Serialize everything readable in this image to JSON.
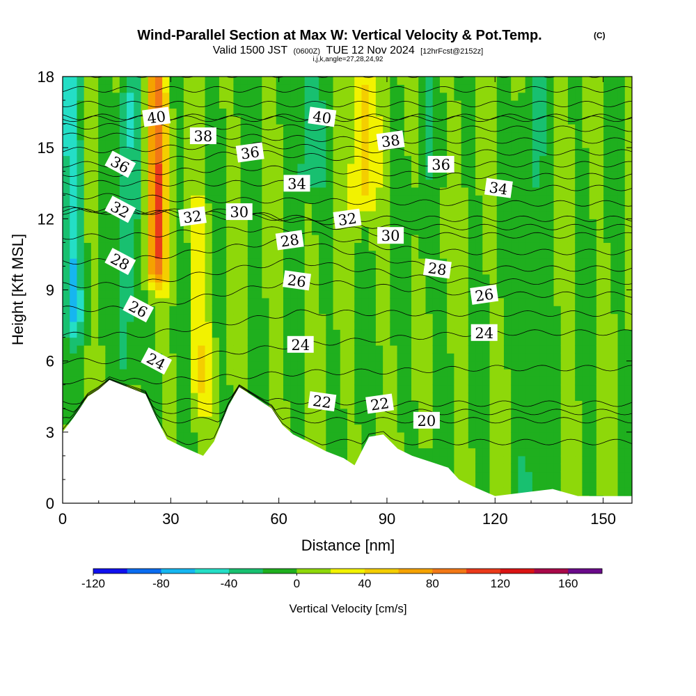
{
  "header": {
    "title": "Wind-Parallel Section at Max W: Vertical Velocity & Pot.Temp.",
    "copyright": "(C)",
    "valid_prefix": "Valid 1500 JST",
    "valid_utc": "(0600Z)",
    "valid_date": "TUE 12 Nov 2024",
    "forecast": "[12hrFcst@2152z]",
    "indices": "i,j,k,angle=27,28,24,92"
  },
  "chart_data": {
    "type": "heatmap",
    "title": "Wind-Parallel Section at Max W: Vertical Velocity & Pot.Temp.",
    "xlabel": "Distance [nm]",
    "ylabel": "Height [Kft MSL]",
    "xlim": [
      0,
      158
    ],
    "ylim": [
      0,
      18
    ],
    "x_ticks": [
      0,
      30,
      60,
      90,
      120,
      150
    ],
    "y_ticks": [
      0,
      3,
      6,
      9,
      12,
      15,
      18
    ],
    "terrain_kft": [
      [
        0,
        3.0
      ],
      [
        3,
        3.6
      ],
      [
        7,
        4.5
      ],
      [
        10,
        4.8
      ],
      [
        13,
        5.2
      ],
      [
        23,
        4.6
      ],
      [
        26,
        3.6
      ],
      [
        29,
        2.7
      ],
      [
        33,
        2.4
      ],
      [
        39,
        2.0
      ],
      [
        42,
        2.6
      ],
      [
        46,
        4.1
      ],
      [
        49,
        4.9
      ],
      [
        58,
        4.0
      ],
      [
        61,
        3.3
      ],
      [
        64,
        2.9
      ],
      [
        68,
        2.6
      ],
      [
        73,
        2.2
      ],
      [
        78,
        1.9
      ],
      [
        81,
        1.6
      ],
      [
        85,
        2.8
      ],
      [
        89,
        2.9
      ],
      [
        93,
        2.3
      ],
      [
        97,
        2.0
      ],
      [
        107,
        1.5
      ],
      [
        110,
        1.0
      ],
      [
        114,
        0.7
      ],
      [
        120,
        0.3
      ],
      [
        136,
        0.6
      ],
      [
        143,
        0.3
      ],
      [
        158,
        0.3
      ]
    ],
    "shading": {
      "variable": "Vertical Velocity",
      "units": "cm/s",
      "label": "Vertical Velocity [cm/s]",
      "levels": [
        -120,
        -100,
        -80,
        -60,
        -40,
        -20,
        0,
        20,
        40,
        60,
        80,
        100,
        120,
        140,
        160,
        180
      ],
      "tick_labels": [
        "-120",
        "-80",
        "-40",
        "0",
        "40",
        "80",
        "120",
        "160"
      ],
      "colors": [
        "#1010ee",
        "#0a6cf0",
        "#16b6f0",
        "#24dec6",
        "#18c070",
        "#1faf1e",
        "#8ed80a",
        "#f2f200",
        "#f4ce00",
        "#f5a200",
        "#f27816",
        "#ea3a1a",
        "#da1414",
        "#a80848",
        "#6a0a8a"
      ],
      "features": [
        {
          "x": 3,
          "y_range": [
            8,
            18
          ],
          "w_cm_s": -50
        },
        {
          "x": 18,
          "y_range": [
            6,
            17
          ],
          "w_cm_s": -40
        },
        {
          "x": 26,
          "y_range": [
            10,
            18
          ],
          "w_cm_s": 90
        },
        {
          "x": 38,
          "y_range": [
            5,
            12
          ],
          "w_cm_s": 30
        },
        {
          "x": 68,
          "y_range": [
            14,
            18
          ],
          "w_cm_s": -40
        },
        {
          "x": 83,
          "y_range": [
            13,
            18
          ],
          "w_cm_s": 50
        },
        {
          "x": 100,
          "y_range": [
            0.5,
            18
          ],
          "w_cm_s": -10
        },
        {
          "x": 130,
          "y_range": [
            0.5,
            18
          ],
          "w_cm_s": -20
        }
      ]
    },
    "contours": {
      "variable": "Potential Temperature",
      "interval": 1,
      "labeled": [
        {
          "value": 40,
          "label": "40",
          "x": 26,
          "y": 16.3
        },
        {
          "value": 38,
          "label": "38",
          "x": 39,
          "y": 15.5
        },
        {
          "value": 36,
          "label": "36",
          "x": 16,
          "y": 14.3
        },
        {
          "value": 36,
          "label": "36",
          "x": 52,
          "y": 14.8
        },
        {
          "value": 34,
          "label": "34",
          "x": 65,
          "y": 13.5
        },
        {
          "value": 32,
          "label": "32",
          "x": 16,
          "y": 12.4
        },
        {
          "value": 32,
          "label": "32",
          "x": 36,
          "y": 12.1
        },
        {
          "value": 30,
          "label": "30",
          "x": 49,
          "y": 12.3
        },
        {
          "value": 28,
          "label": "28",
          "x": 16,
          "y": 10.2
        },
        {
          "value": 28,
          "label": "28",
          "x": 63,
          "y": 11.1
        },
        {
          "value": 26,
          "label": "26",
          "x": 21,
          "y": 8.2
        },
        {
          "value": 26,
          "label": "26",
          "x": 65,
          "y": 9.4
        },
        {
          "value": 24,
          "label": "24",
          "x": 26,
          "y": 6.0
        },
        {
          "value": 24,
          "label": "24",
          "x": 66,
          "y": 6.7
        },
        {
          "value": 40,
          "label": "40",
          "x": 72,
          "y": 16.3
        },
        {
          "value": 38,
          "label": "38",
          "x": 91,
          "y": 15.3
        },
        {
          "value": 36,
          "label": "36",
          "x": 105,
          "y": 14.3
        },
        {
          "value": 34,
          "label": "34",
          "x": 121,
          "y": 13.3
        },
        {
          "value": 32,
          "label": "32",
          "x": 79,
          "y": 12.0
        },
        {
          "value": 30,
          "label": "30",
          "x": 91,
          "y": 11.3
        },
        {
          "value": 28,
          "label": "28",
          "x": 104,
          "y": 9.9
        },
        {
          "value": 26,
          "label": "26",
          "x": 117,
          "y": 8.8
        },
        {
          "value": 24,
          "label": "24",
          "x": 117,
          "y": 7.2
        },
        {
          "value": 22,
          "label": "22",
          "x": 72,
          "y": 4.3
        },
        {
          "value": 22,
          "label": "22",
          "x": 88,
          "y": 4.2
        },
        {
          "value": 20,
          "label": "20",
          "x": 101,
          "y": 3.5
        }
      ]
    }
  }
}
